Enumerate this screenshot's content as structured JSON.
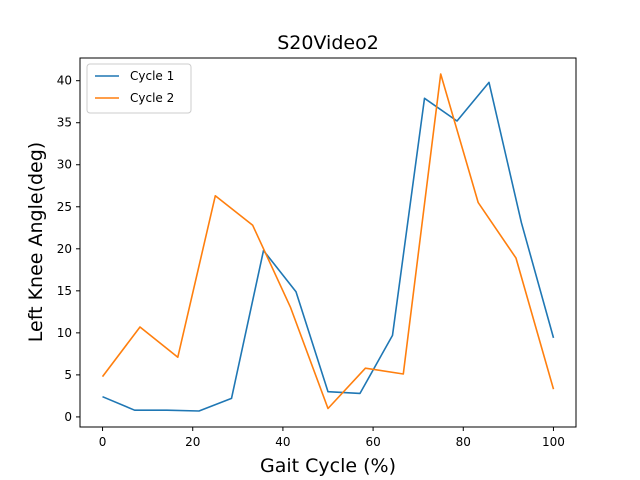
{
  "chart_data": {
    "type": "line",
    "title": "S20Video2",
    "xlabel": "Gait Cycle (%)",
    "ylabel": "Left Knee Angle(deg)",
    "xlim": [
      -5,
      105
    ],
    "ylim": [
      -1.2,
      42.7
    ],
    "xticks": [
      0,
      20,
      40,
      60,
      80,
      100
    ],
    "yticks": [
      0,
      5,
      10,
      15,
      20,
      25,
      30,
      35,
      40
    ],
    "grid": false,
    "legend_position": "top-left",
    "series": [
      {
        "name": "Cycle 1",
        "color": "#1f77b4",
        "x": [
          0,
          7.1,
          14.3,
          21.4,
          28.6,
          35.7,
          42.9,
          50.0,
          57.1,
          64.3,
          71.4,
          78.6,
          85.7,
          92.9,
          100
        ],
        "y": [
          2.4,
          0.8,
          0.8,
          0.7,
          2.2,
          19.8,
          14.9,
          3.0,
          2.8,
          9.7,
          37.9,
          35.2,
          39.8,
          23.1,
          9.4
        ]
      },
      {
        "name": "Cycle 2",
        "color": "#ff7f0e",
        "x": [
          0,
          8.3,
          16.7,
          25.0,
          33.3,
          41.7,
          50.0,
          58.3,
          66.7,
          75.0,
          83.3,
          91.7,
          100
        ],
        "y": [
          4.8,
          10.7,
          7.1,
          26.3,
          22.8,
          13.0,
          1.0,
          5.8,
          5.1,
          40.8,
          25.5,
          18.9,
          3.3
        ]
      }
    ]
  }
}
